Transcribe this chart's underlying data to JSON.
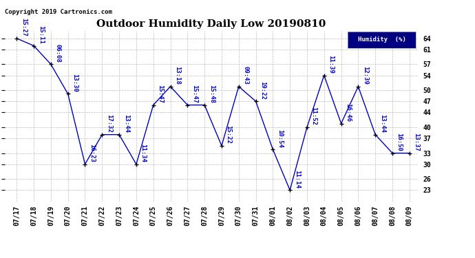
{
  "title": "Outdoor Humidity Daily Low 20190810",
  "copyright": "Copyright 2019 Cartronics.com",
  "legend_label": "Humidity  (%)",
  "x_labels": [
    "07/17",
    "07/18",
    "07/19",
    "07/20",
    "07/21",
    "07/22",
    "07/23",
    "07/24",
    "07/25",
    "07/26",
    "07/27",
    "07/28",
    "07/29",
    "07/30",
    "07/31",
    "08/01",
    "08/02",
    "08/03",
    "08/04",
    "08/05",
    "08/06",
    "08/07",
    "08/08",
    "08/09"
  ],
  "y_values": [
    64,
    62,
    57,
    49,
    30,
    38,
    38,
    30,
    46,
    51,
    46,
    46,
    35,
    51,
    47,
    34,
    23,
    40,
    54,
    41,
    51,
    38,
    33,
    33
  ],
  "point_labels": [
    "15:27",
    "15:11",
    "06:08",
    "13:30",
    "16:23",
    "17:32",
    "13:44",
    "11:34",
    "15:47",
    "13:18",
    "15:47",
    "15:48",
    "15:22",
    "09:43",
    "19:22",
    "10:54",
    "11:14",
    "11:52",
    "11:39",
    "16:46",
    "12:39",
    "13:44",
    "16:50",
    "13:37"
  ],
  "y_ticks": [
    23,
    26,
    30,
    33,
    37,
    40,
    44,
    47,
    50,
    54,
    57,
    61,
    64
  ],
  "ylim": [
    20,
    66
  ],
  "xlim": [
    -0.7,
    23.5
  ],
  "line_color": "#0000bb",
  "marker_color": "#000000",
  "label_color": "#0000cc",
  "bg_color": "#ffffff",
  "grid_color": "#bbbbbb",
  "title_fontsize": 11,
  "label_fontsize": 6.5,
  "axis_fontsize": 7,
  "legend_bg": "#000080",
  "legend_fg": "#ffffff"
}
